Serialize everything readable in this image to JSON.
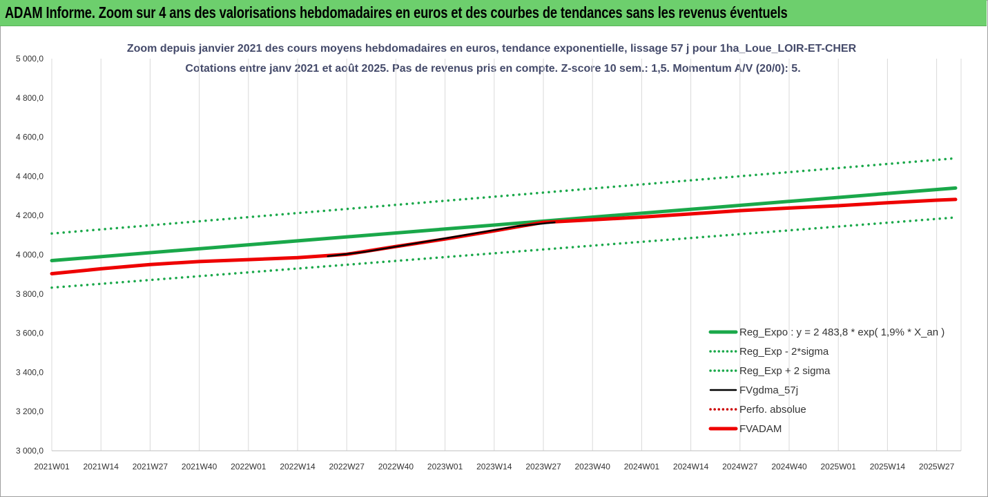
{
  "banner": {
    "title": "ADAM Informe. Zoom sur 4 ans des valorisations hebdomadaires en euros et des courbes de tendances sans les revenus éventuels"
  },
  "colors": {
    "banner_bg": "#6dcf6d",
    "reg_expo": "#1aa84a",
    "fvgdma": "#000000",
    "perfo": "#cc0000",
    "fvadam": "#ee0000",
    "gridline": "#d9d9d9"
  },
  "chart_data": {
    "type": "line",
    "title": "Zoom depuis janvier 2021 des cours moyens hebdomadaires en euros, tendance exponentielle, lissage 57 j pour 1ha_Loue_LOIR-ET-CHER",
    "subtitle": "Cotations entre janv 2021 et août 2025.  Pas de revenus pris en compte. Z-score 10 sem.: 1,5. Momentum A/V (20/0): 5.",
    "xlabel": "",
    "ylabel": "",
    "ylim": [
      3000,
      5000
    ],
    "yticks": [
      5000,
      4800,
      4600,
      4400,
      4200,
      4000,
      3800,
      3600,
      3400,
      3200,
      3000
    ],
    "ytick_labels": [
      "5 000,0",
      "4 800,0",
      "4 600,0",
      "4 400,0",
      "4 200,0",
      "4 000,0",
      "3 800,0",
      "3 600,0",
      "3 400,0",
      "3 200,0",
      "3 000,0"
    ],
    "xlim": [
      "2021W01",
      "2025W32"
    ],
    "x_tick_labels": [
      "2021W01",
      "2021W14",
      "2021W27",
      "2021W40",
      "2022W01",
      "2022W14",
      "2022W27",
      "2022W40",
      "2023W01",
      "2023W14",
      "2023W27",
      "2023W40",
      "2024W01",
      "2024W14",
      "2024W27",
      "2024W40",
      "2025W01",
      "2025W14",
      "2025W27"
    ],
    "grid": "vertical",
    "legend_position": "bottom-right",
    "series": [
      {
        "name": "Reg_Expo : y = 2 483,8 * exp( 1,9% *  X_an )",
        "style": "solid-thick",
        "color": "#1aa84a",
        "x": [
          "2021W01",
          "2025W32"
        ],
        "y": [
          3970,
          4340
        ]
      },
      {
        "name": "Reg_Exp - 2*sigma",
        "style": "dotted",
        "color": "#1aa84a",
        "x": [
          "2021W01",
          "2025W32"
        ],
        "y": [
          3832,
          4190
        ]
      },
      {
        "name": "Reg_Exp + 2 sigma",
        "style": "dotted",
        "color": "#1aa84a",
        "x": [
          "2021W01",
          "2025W32"
        ],
        "y": [
          4108,
          4492
        ]
      },
      {
        "name": "FVgdma_57j",
        "style": "solid",
        "color": "#000000",
        "x": [
          "2022W22",
          "2022W32",
          "2023W20",
          "2023W30"
        ],
        "y": [
          3992,
          4015,
          4145,
          4165
        ]
      },
      {
        "name": "Perfo. absolue",
        "style": "dotted",
        "color": "#cc0000",
        "x": [],
        "y": []
      },
      {
        "name": "FVADAM",
        "style": "solid-thick",
        "color": "#ee0000",
        "x": [
          "2021W01",
          "2021W14",
          "2021W27",
          "2021W40",
          "2022W01",
          "2022W14",
          "2022W27",
          "2022W40",
          "2023W01",
          "2023W14",
          "2023W27",
          "2023W40",
          "2024W01",
          "2024W14",
          "2024W27",
          "2024W40",
          "2025W01",
          "2025W14",
          "2025W27",
          "2025W32"
        ],
        "y": [
          3903,
          3928,
          3950,
          3965,
          3975,
          3985,
          4002,
          4042,
          4080,
          4122,
          4165,
          4178,
          4192,
          4208,
          4225,
          4238,
          4250,
          4265,
          4278,
          4282
        ]
      }
    ]
  }
}
